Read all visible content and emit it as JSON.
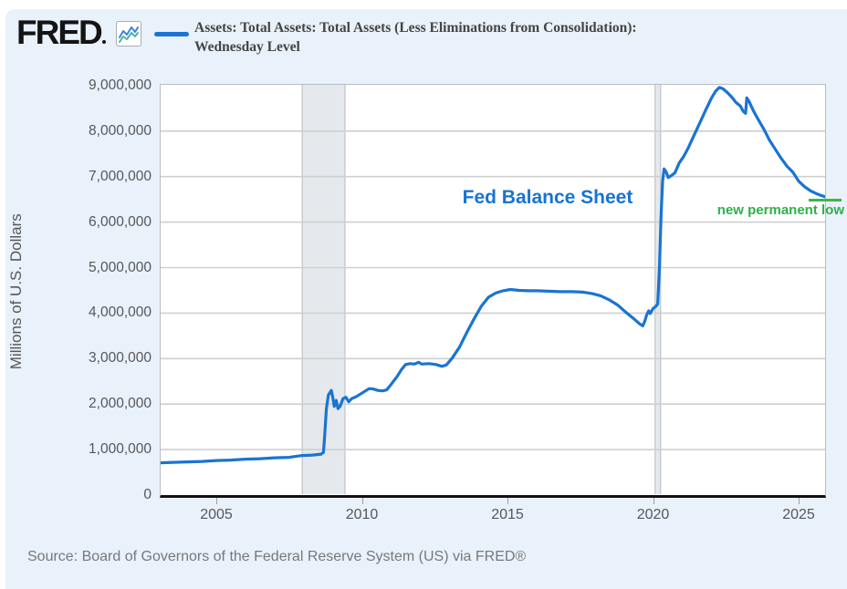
{
  "header": {
    "logo_text": "FRED",
    "logo_icon": "sparkline-chart-icon",
    "legend": {
      "line1": "Assets: Total Assets: Total Assets (Less Eliminations from Consolidation):",
      "line2": "Wednesday Level"
    }
  },
  "annotations": {
    "main_label": "Fed Balance Sheet",
    "low_label": "new permanent low"
  },
  "source_line": "Source: Board of Governors of the Federal Reserve System (US) via FRED®",
  "colors": {
    "panel_bg": "#e9f1fa",
    "plot_bg": "#ffffff",
    "line": "#1a74d2",
    "gridline": "#cfcfcf",
    "recession_band": "#e5e9ed",
    "band_edge": "#b4bac1",
    "axis_black": "#111111",
    "annotation_blue": "#1874d2",
    "annotation_green": "#2eb04b",
    "icon_line_blue": "#3d85e0",
    "icon_line_teal": "#4db6a0",
    "tick_text": "#56575a"
  },
  "chart_data": {
    "type": "line",
    "title": "",
    "ylabel": "Millions of U.S. Dollars",
    "xlabel": "",
    "ylim": [
      0,
      9040000
    ],
    "xlim": [
      2003.06,
      2025.95
    ],
    "grid": "horizontal",
    "legend_position": "top",
    "y_ticks": [
      {
        "value": 9000000,
        "label": "9,000,000"
      },
      {
        "value": 8000000,
        "label": "8,000,000"
      },
      {
        "value": 7000000,
        "label": "7,000,000"
      },
      {
        "value": 6000000,
        "label": "6,000,000"
      },
      {
        "value": 5000000,
        "label": "5,000,000"
      },
      {
        "value": 4000000,
        "label": "4,000,000"
      },
      {
        "value": 3000000,
        "label": "3,000,000"
      },
      {
        "value": 2000000,
        "label": "2,000,000"
      },
      {
        "value": 1000000,
        "label": "1,000,000"
      },
      {
        "value": 0,
        "label": "0"
      }
    ],
    "x_ticks": [
      {
        "value": 2005,
        "label": "2005"
      },
      {
        "value": 2010,
        "label": "2010"
      },
      {
        "value": 2015,
        "label": "2015"
      },
      {
        "value": 2020,
        "label": "2020"
      },
      {
        "value": 2025,
        "label": "2025"
      }
    ],
    "recession_bands": [
      [
        2007.95,
        2009.42
      ],
      [
        2020.07,
        2020.26
      ]
    ],
    "series": [
      {
        "name": "Assets: Total Assets: Total Assets (Less Eliminations from Consolidation): Wednesday Level",
        "units": "Millions of U.S. Dollars",
        "points": [
          [
            2003.08,
            710000
          ],
          [
            2003.5,
            720000
          ],
          [
            2004.0,
            730000
          ],
          [
            2004.5,
            740000
          ],
          [
            2005.0,
            760000
          ],
          [
            2005.5,
            770000
          ],
          [
            2006.0,
            790000
          ],
          [
            2006.5,
            800000
          ],
          [
            2007.0,
            820000
          ],
          [
            2007.5,
            830000
          ],
          [
            2007.95,
            870000
          ],
          [
            2008.3,
            880000
          ],
          [
            2008.6,
            900000
          ],
          [
            2008.68,
            940000
          ],
          [
            2008.72,
            1300000
          ],
          [
            2008.78,
            1900000
          ],
          [
            2008.85,
            2200000
          ],
          [
            2008.95,
            2300000
          ],
          [
            2009.0,
            2150000
          ],
          [
            2009.05,
            1950000
          ],
          [
            2009.12,
            2080000
          ],
          [
            2009.18,
            1900000
          ],
          [
            2009.25,
            1950000
          ],
          [
            2009.35,
            2120000
          ],
          [
            2009.45,
            2150000
          ],
          [
            2009.55,
            2050000
          ],
          [
            2009.65,
            2120000
          ],
          [
            2009.8,
            2160000
          ],
          [
            2009.95,
            2220000
          ],
          [
            2010.1,
            2280000
          ],
          [
            2010.25,
            2340000
          ],
          [
            2010.4,
            2330000
          ],
          [
            2010.55,
            2300000
          ],
          [
            2010.7,
            2290000
          ],
          [
            2010.85,
            2310000
          ],
          [
            2011.0,
            2430000
          ],
          [
            2011.2,
            2600000
          ],
          [
            2011.35,
            2750000
          ],
          [
            2011.5,
            2870000
          ],
          [
            2011.65,
            2890000
          ],
          [
            2011.8,
            2880000
          ],
          [
            2011.95,
            2920000
          ],
          [
            2012.05,
            2880000
          ],
          [
            2012.3,
            2890000
          ],
          [
            2012.55,
            2870000
          ],
          [
            2012.75,
            2830000
          ],
          [
            2012.9,
            2860000
          ],
          [
            2013.1,
            3010000
          ],
          [
            2013.35,
            3250000
          ],
          [
            2013.6,
            3570000
          ],
          [
            2013.85,
            3870000
          ],
          [
            2014.1,
            4150000
          ],
          [
            2014.35,
            4350000
          ],
          [
            2014.6,
            4440000
          ],
          [
            2014.85,
            4490000
          ],
          [
            2015.1,
            4520000
          ],
          [
            2015.4,
            4500000
          ],
          [
            2015.7,
            4490000
          ],
          [
            2016.0,
            4490000
          ],
          [
            2016.4,
            4480000
          ],
          [
            2016.8,
            4470000
          ],
          [
            2017.2,
            4470000
          ],
          [
            2017.6,
            4460000
          ],
          [
            2017.9,
            4430000
          ],
          [
            2018.2,
            4380000
          ],
          [
            2018.5,
            4290000
          ],
          [
            2018.8,
            4170000
          ],
          [
            2019.1,
            4000000
          ],
          [
            2019.35,
            3870000
          ],
          [
            2019.55,
            3760000
          ],
          [
            2019.65,
            3720000
          ],
          [
            2019.72,
            3830000
          ],
          [
            2019.78,
            3960000
          ],
          [
            2019.85,
            4050000
          ],
          [
            2019.9,
            3990000
          ],
          [
            2020.0,
            4100000
          ],
          [
            2020.1,
            4150000
          ],
          [
            2020.16,
            4200000
          ],
          [
            2020.22,
            5000000
          ],
          [
            2020.28,
            6200000
          ],
          [
            2020.33,
            6900000
          ],
          [
            2020.38,
            7170000
          ],
          [
            2020.45,
            7100000
          ],
          [
            2020.52,
            6980000
          ],
          [
            2020.6,
            7010000
          ],
          [
            2020.75,
            7080000
          ],
          [
            2020.9,
            7300000
          ],
          [
            2021.05,
            7440000
          ],
          [
            2021.2,
            7620000
          ],
          [
            2021.4,
            7900000
          ],
          [
            2021.6,
            8170000
          ],
          [
            2021.8,
            8450000
          ],
          [
            2022.0,
            8720000
          ],
          [
            2022.15,
            8880000
          ],
          [
            2022.28,
            8960000
          ],
          [
            2022.4,
            8930000
          ],
          [
            2022.55,
            8850000
          ],
          [
            2022.7,
            8750000
          ],
          [
            2022.85,
            8630000
          ],
          [
            2023.0,
            8550000
          ],
          [
            2023.1,
            8430000
          ],
          [
            2023.18,
            8390000
          ],
          [
            2023.22,
            8730000
          ],
          [
            2023.3,
            8650000
          ],
          [
            2023.45,
            8440000
          ],
          [
            2023.6,
            8270000
          ],
          [
            2023.8,
            8050000
          ],
          [
            2024.0,
            7800000
          ],
          [
            2024.2,
            7600000
          ],
          [
            2024.4,
            7400000
          ],
          [
            2024.6,
            7230000
          ],
          [
            2024.8,
            7100000
          ],
          [
            2025.0,
            6900000
          ],
          [
            2025.2,
            6780000
          ],
          [
            2025.4,
            6690000
          ],
          [
            2025.6,
            6630000
          ],
          [
            2025.8,
            6580000
          ],
          [
            2025.9,
            6560000
          ]
        ]
      }
    ],
    "annotations": [
      {
        "text": "Fed Balance Sheet",
        "color": "#1874d2",
        "x": 2016.3,
        "y": 6400000
      },
      {
        "text": "new permanent low",
        "color": "#2eb04b",
        "x": 2024.5,
        "y": 6150000
      },
      {
        "type": "hline-segment",
        "color": "#3cb54a",
        "y": 6480000,
        "x_start": 2025.3,
        "x_end": 2026.4
      }
    ]
  }
}
